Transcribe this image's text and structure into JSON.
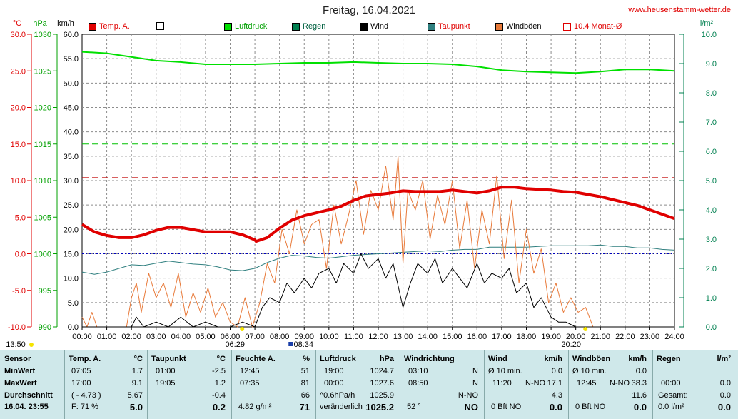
{
  "header": {
    "title": "Freitag, 16.04.2021",
    "site": "www.heusenstamm-wetter.de"
  },
  "legend": [
    {
      "label": "Temp. A.",
      "color": "#e00000",
      "text_color": "#e00000",
      "filled": true
    },
    {
      "label": "",
      "color": "#ffffff",
      "text_color": "#000000",
      "filled": false
    },
    {
      "label": "Luftdruck",
      "color": "#00e000",
      "text_color": "#00a000",
      "filled": true
    },
    {
      "label": "Regen",
      "color": "#008050",
      "text_color": "#006040",
      "filled": true
    },
    {
      "label": "Wind",
      "color": "#000000",
      "text_color": "#000000",
      "filled": true
    },
    {
      "label": "Taupunkt",
      "color": "#2f7f7f",
      "text_color": "#e00000",
      "filled": true
    },
    {
      "label": "Windböen",
      "color": "#e87a3a",
      "text_color": "#000000",
      "filled": true
    },
    {
      "label": "10.4 Monat-Ø",
      "color": "#ffffff",
      "text_color": "#e00000",
      "filled": false,
      "border": "#e00000"
    }
  ],
  "chart_data": {
    "type": "line",
    "x_unit": "time of day",
    "x_ticks": [
      "00:00",
      "01:00",
      "02:00",
      "03:00",
      "04:00",
      "05:00",
      "06:00",
      "07:00",
      "08:00",
      "09:00",
      "10:00",
      "11:00",
      "12:00",
      "13:00",
      "14:00",
      "15:00",
      "16:00",
      "17:00",
      "18:00",
      "19:00",
      "20:00",
      "21:00",
      "22:00",
      "23:00",
      "24:00"
    ],
    "axes": {
      "temp_c": {
        "label": "°C",
        "ticks": [
          "30.0",
          "25.0",
          "20.0",
          "15.0",
          "10.0",
          "5.0",
          "0.0",
          "-5.0",
          "-10.0"
        ],
        "ylim": [
          -10,
          30
        ],
        "color": "#e00000"
      },
      "pressure_hpa": {
        "label": "hPa",
        "ticks": [
          "1030",
          "1025",
          "1020",
          "1015",
          "1010",
          "1005",
          "1000",
          "995",
          "990"
        ],
        "ylim": [
          990,
          1030
        ],
        "color": "#00a000"
      },
      "wind_kmh": {
        "label": "km/h",
        "ticks": [
          "60.0",
          "55.0",
          "50.0",
          "45.0",
          "40.0",
          "35.0",
          "30.0",
          "25.0",
          "20.0",
          "15.0",
          "10.0",
          "5.0",
          "0.0"
        ],
        "ylim": [
          0,
          60
        ],
        "color": "#000000"
      },
      "rain_lm2": {
        "label": "l/m²",
        "ticks": [
          "10.0",
          "9.0",
          "8.0",
          "7.0",
          "6.0",
          "5.0",
          "4.0",
          "3.0",
          "2.0",
          "1.0",
          "0.0"
        ],
        "ylim": [
          0,
          10
        ],
        "color": "#008050"
      }
    },
    "reference_lines": [
      {
        "axis": "pressure_hpa",
        "value": 1015,
        "color": "#00c000",
        "style": "dashed"
      },
      {
        "axis": "temp_c",
        "value": 10.4,
        "color": "#c00000",
        "style": "dashed"
      },
      {
        "axis": "temp_c",
        "value": 0,
        "color": "#0000c0",
        "style": "dotted"
      }
    ],
    "series": [
      {
        "name": "Temp. A.",
        "axis": "temp_c",
        "color": "#e00000",
        "width": 4,
        "x": [
          0,
          0.5,
          1,
          1.5,
          2,
          2.5,
          3,
          3.5,
          4,
          4.5,
          5,
          5.5,
          6,
          6.5,
          7,
          7.05,
          7.5,
          8,
          8.5,
          9,
          9.5,
          10,
          10.5,
          11,
          11.5,
          12,
          12.5,
          13,
          13.5,
          14,
          14.5,
          15,
          15.5,
          16,
          16.5,
          17,
          17.5,
          18,
          18.5,
          19,
          19.5,
          20,
          20.5,
          21,
          21.5,
          22,
          22.5,
          23,
          23.5,
          24
        ],
        "y": [
          4,
          3,
          2.5,
          2.2,
          2.2,
          2.6,
          3.2,
          3.6,
          3.6,
          3.3,
          3.0,
          3.0,
          3.0,
          2.6,
          1.9,
          1.7,
          2.2,
          3.5,
          4.6,
          5.2,
          5.6,
          6.0,
          6.5,
          7.3,
          7.9,
          8.1,
          8.3,
          8.6,
          8.5,
          8.5,
          8.5,
          8.7,
          8.5,
          8.3,
          8.6,
          9.1,
          9.1,
          8.9,
          8.8,
          8.7,
          8.5,
          8.4,
          8.1,
          7.8,
          7.4,
          7.0,
          6.6,
          6.0,
          5.4,
          4.8
        ]
      },
      {
        "name": "Taupunkt",
        "axis": "temp_c",
        "color": "#2f7f7f",
        "width": 1,
        "x": [
          0,
          0.5,
          1,
          1.5,
          2,
          2.5,
          3,
          3.5,
          4,
          4.5,
          5,
          5.5,
          6,
          6.5,
          7,
          7.5,
          8,
          8.5,
          9,
          9.5,
          10,
          10.5,
          11,
          11.5,
          12,
          12.5,
          13,
          13.5,
          14,
          14.5,
          15,
          15.5,
          16,
          16.5,
          17,
          17.5,
          18,
          18.5,
          19,
          19.5,
          20,
          20.5,
          21,
          21.5,
          22,
          22.5,
          23,
          23.5,
          24
        ],
        "y": [
          -2.5,
          -2.8,
          -2.5,
          -2.0,
          -1.5,
          -1.6,
          -1.3,
          -1.0,
          -1.2,
          -1.4,
          -1.5,
          -1.8,
          -2.2,
          -2.3,
          -2.0,
          -1.2,
          -0.6,
          -0.2,
          -0.3,
          -0.5,
          -0.6,
          -0.4,
          -0.2,
          -0.1,
          0.0,
          0.1,
          0.2,
          0.3,
          0.4,
          0.3,
          0.5,
          0.6,
          0.6,
          0.9,
          0.9,
          0.9,
          0.9,
          1.0,
          1.1,
          1.1,
          1.1,
          1.1,
          1.2,
          1.0,
          1.0,
          0.8,
          0.8,
          0.6,
          0.5
        ]
      },
      {
        "name": "Luftdruck",
        "axis": "pressure_hpa",
        "color": "#00e000",
        "width": 2,
        "x": [
          0,
          1,
          2,
          3,
          4,
          5,
          6,
          7,
          8,
          9,
          10,
          11,
          12,
          13,
          14,
          15,
          16,
          17,
          18,
          19,
          20,
          21,
          22,
          23,
          24
        ],
        "y": [
          1027.6,
          1027.4,
          1026.9,
          1026.4,
          1026.2,
          1025.9,
          1025.9,
          1025.9,
          1026.0,
          1026.1,
          1026.1,
          1026.2,
          1026.1,
          1026.0,
          1026.0,
          1025.9,
          1025.6,
          1025.1,
          1024.9,
          1024.8,
          1024.7,
          1024.9,
          1025.2,
          1025.2,
          1025.0
        ]
      },
      {
        "name": "Wind",
        "axis": "wind_kmh",
        "color": "#000000",
        "width": 1,
        "x": [
          0,
          1,
          2,
          2.2,
          2.5,
          3,
          3.5,
          4,
          4.5,
          5,
          5.5,
          6,
          6.5,
          7,
          7.3,
          7.6,
          8,
          8.3,
          8.6,
          9,
          9.3,
          9.6,
          10,
          10.3,
          10.6,
          11,
          11.3,
          11.6,
          12,
          12.3,
          12.6,
          13,
          13.3,
          13.6,
          14,
          14.3,
          14.6,
          15,
          15.3,
          15.6,
          16,
          16.3,
          16.6,
          17,
          17.3,
          17.6,
          18,
          18.3,
          18.6,
          19,
          19.3,
          19.6,
          20,
          20.5,
          21,
          22,
          23,
          24
        ],
        "y": [
          0,
          0,
          0,
          2,
          0,
          1,
          0,
          2,
          0,
          1,
          0,
          0,
          1,
          0,
          4,
          6,
          5,
          9,
          7,
          10,
          8,
          11,
          12,
          9,
          13,
          11,
          15,
          12,
          14,
          10,
          13,
          4,
          9,
          13,
          11,
          14,
          9,
          12,
          10,
          8,
          13,
          9,
          11,
          10,
          12,
          7,
          9,
          4,
          6,
          2,
          1,
          1,
          0,
          0,
          0,
          0,
          0,
          0
        ]
      },
      {
        "name": "Windböen",
        "axis": "wind_kmh",
        "color": "#e87a3a",
        "width": 1,
        "x": [
          0,
          0.2,
          0.4,
          0.6,
          1,
          1.8,
          2,
          2.2,
          2.4,
          2.7,
          3,
          3.3,
          3.6,
          3.9,
          4.2,
          4.5,
          4.8,
          5.1,
          5.4,
          5.7,
          6,
          6.3,
          6.6,
          6.9,
          7.2,
          7.5,
          7.8,
          8.1,
          8.4,
          8.7,
          9,
          9.3,
          9.6,
          9.9,
          10.2,
          10.5,
          10.8,
          11.1,
          11.4,
          11.7,
          12,
          12.3,
          12.6,
          12.8,
          13,
          13.2,
          13.5,
          13.8,
          14.1,
          14.4,
          14.7,
          15,
          15.3,
          15.6,
          15.9,
          16.2,
          16.5,
          16.8,
          17.1,
          17.4,
          17.7,
          18,
          18.3,
          18.6,
          18.9,
          19.2,
          19.5,
          19.8,
          20.1,
          20.4,
          20.7,
          21,
          22,
          23,
          24
        ],
        "y": [
          2,
          0,
          3,
          0,
          0,
          0,
          6,
          9,
          3,
          11,
          6,
          9,
          4,
          11,
          2,
          7,
          3,
          8,
          2,
          5,
          1,
          0,
          6,
          0,
          5,
          13,
          9,
          20,
          15,
          24,
          17,
          21,
          22,
          12,
          25,
          17,
          23,
          30,
          19,
          28,
          24,
          33,
          22,
          35,
          13,
          28,
          24,
          30,
          18,
          27,
          21,
          30,
          16,
          26,
          12,
          24,
          17,
          31,
          14,
          26,
          9,
          20,
          11,
          16,
          5,
          9,
          3,
          6,
          3,
          4,
          0,
          0,
          0,
          0,
          0
        ]
      }
    ],
    "marks": {
      "sunrise": "06:29",
      "sunset": "20:20",
      "moonrise": "08:34",
      "moonset": "13:50"
    }
  },
  "stats": {
    "date": "16.04. 23:55",
    "sensor": {
      "header": "Sensor",
      "rows": [
        "MinWert",
        "MaxWert",
        "Durchschnitt"
      ]
    },
    "temp": {
      "header": "Temp. A.",
      "unit": "°C",
      "times": [
        "07:05",
        "17:00",
        "( - 4.73 )"
      ],
      "values": [
        "1.7",
        "9.1",
        "5.67"
      ],
      "foot_left": "F: 71 %",
      "foot": "5.0"
    },
    "dew": {
      "header": "Taupunkt",
      "unit": "°C",
      "times": [
        "01:00",
        "19:05",
        ""
      ],
      "values": [
        "-2.5",
        "1.2",
        "-0.4"
      ],
      "foot": "0.2"
    },
    "hum": {
      "header": "Feuchte A.",
      "unit": "%",
      "times": [
        "12:45",
        "07:35",
        ""
      ],
      "values": [
        "51",
        "81",
        "66"
      ],
      "foot_left": "4.82 g/m²",
      "foot": "71"
    },
    "press": {
      "header": "Luftdruck",
      "unit": "hPa",
      "times": [
        "19:00",
        "00:00",
        "^0.6hPa/h"
      ],
      "values": [
        "1024.7",
        "1027.6",
        "1025.9"
      ],
      "foot_left": "veränderlich",
      "foot": "1025.2"
    },
    "dir": {
      "header": "Windrichtung",
      "times": [
        "03:10",
        "08:50",
        ""
      ],
      "values": [
        "N",
        "N",
        "N-NO"
      ],
      "foot_left": "52 °",
      "foot": "NO"
    },
    "wind": {
      "header": "Wind",
      "unit": "km/h",
      "r1l": "Ø 10 min.",
      "r1v": "0.0",
      "r2l": "11:20",
      "r2m": "N-NO",
      "r2v": "17.1",
      "r3v": "4.3",
      "foot_left": "0 Bft NO",
      "foot": "0.0"
    },
    "gust": {
      "header": "Windböen",
      "unit": "km/h",
      "r1l": "Ø 10 min.",
      "r1v": "0.0",
      "r2l": "12:45",
      "r2m": "N-NO",
      "r2v": "38.3",
      "r3v": "11.6",
      "foot_left": "0 Bft NO",
      "foot": "0.0"
    },
    "rain": {
      "header": "Regen",
      "unit": "l/m²",
      "r2l": "00:00",
      "r2v": "0.0",
      "r3l": "Gesamt:",
      "r3v": "0.0",
      "foot_left": "0.0 l/m²",
      "foot": "0.0"
    }
  }
}
